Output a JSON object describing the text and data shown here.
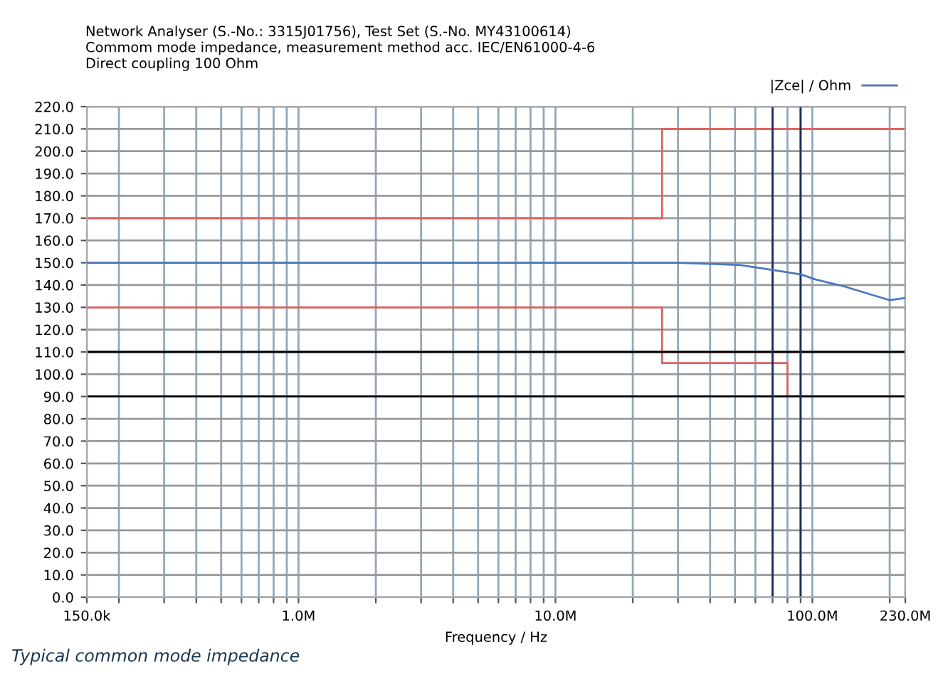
{
  "chart_data": {
    "type": "line",
    "title": "Network Analyser (S.-No.: 3315J01756), Test Set (S.-No. MY43100614)\nCommom mode impedance, measurement method acc. IEC/EN61000-4-6\nDirect coupling 100 Ohm",
    "xlabel": "Frequency / Hz",
    "annotations": [
      "Typical common mode impedance"
    ],
    "log": "x",
    "xlim": [
      150000,
      230000000
    ],
    "xticks": [
      {
        "value": 150000,
        "label": "150.0k"
      },
      {
        "value": 200000,
        "label": null
      },
      {
        "value": 300000,
        "label": null
      },
      {
        "value": 400000,
        "label": null
      },
      {
        "value": 500000,
        "label": null
      },
      {
        "value": 600000,
        "label": null
      },
      {
        "value": 700000,
        "label": null
      },
      {
        "value": 800000,
        "label": null
      },
      {
        "value": 900000,
        "label": null
      },
      {
        "value": 1000000,
        "label": "1.0M"
      },
      {
        "value": 2000000,
        "label": null
      },
      {
        "value": 3000000,
        "label": null
      },
      {
        "value": 4000000,
        "label": null
      },
      {
        "value": 5000000,
        "label": null
      },
      {
        "value": 6000000,
        "label": null
      },
      {
        "value": 7000000,
        "label": null
      },
      {
        "value": 8000000,
        "label": null
      },
      {
        "value": 9000000,
        "label": null
      },
      {
        "value": 10000000,
        "label": "10.0M"
      },
      {
        "value": 20000000,
        "label": null
      },
      {
        "value": 30000000,
        "label": null
      },
      {
        "value": 40000000,
        "label": null
      },
      {
        "value": 50000000,
        "label": null
      },
      {
        "value": 60000000,
        "label": null
      },
      {
        "value": 70000000,
        "label": null
      },
      {
        "value": 80000000,
        "label": null
      },
      {
        "value": 90000000,
        "label": null
      },
      {
        "value": 100000000,
        "label": "100.0M"
      },
      {
        "value": 200000000,
        "label": null
      },
      {
        "value": 230000000,
        "label": "230.0M"
      }
    ],
    "ylim": [
      0,
      220
    ],
    "yticks": [
      {
        "value": 0,
        "label": "0.0"
      },
      {
        "value": 10,
        "label": "10.0"
      },
      {
        "value": 20,
        "label": "20.0"
      },
      {
        "value": 30,
        "label": "30.0"
      },
      {
        "value": 40,
        "label": "40.0"
      },
      {
        "value": 50,
        "label": "50.0"
      },
      {
        "value": 60,
        "label": "60.0"
      },
      {
        "value": 70,
        "label": "70.0"
      },
      {
        "value": 80,
        "label": "80.0"
      },
      {
        "value": 90,
        "label": "90.0"
      },
      {
        "value": 100,
        "label": "100.0"
      },
      {
        "value": 110,
        "label": "110.0"
      },
      {
        "value": 120,
        "label": "120.0"
      },
      {
        "value": 130,
        "label": "130.0"
      },
      {
        "value": 140,
        "label": "140.0"
      },
      {
        "value": 150,
        "label": "150.0"
      },
      {
        "value": 160,
        "label": "160.0"
      },
      {
        "value": 170,
        "label": "170.0"
      },
      {
        "value": 180,
        "label": "180.0"
      },
      {
        "value": 190,
        "label": "190.0"
      },
      {
        "value": 200,
        "label": "200.0"
      },
      {
        "value": 210,
        "label": "210.0"
      },
      {
        "value": 220,
        "label": "220.0"
      }
    ],
    "grid": true,
    "legend": "top right",
    "series": [
      {
        "color": "#e06060",
        "x": [
          150000,
          26000000,
          26000000,
          230000000
        ],
        "values": [
          170,
          170,
          210,
          210
        ]
      },
      {
        "color": "#e06060",
        "x": [
          150000,
          26000000,
          26000000,
          80000000,
          80000000,
          230000000
        ],
        "values": [
          130,
          130,
          105,
          105,
          90,
          90
        ]
      },
      {
        "name": "|Zce| / Ohm",
        "color": "#4a78c0",
        "x": [
          150000,
          1000000,
          10000000,
          30000000,
          40000000,
          52000000,
          73500000,
          90500000,
          103000000,
          132000000,
          200000000,
          230000000
        ],
        "values": [
          150,
          150,
          150,
          150,
          149.5,
          149,
          146.4,
          144.7,
          142.5,
          139.5,
          133.2,
          134.2
        ]
      },
      {
        "color": "#000000",
        "x": [
          150000,
          230000000
        ],
        "values": [
          110,
          110
        ]
      },
      {
        "color": "#000000",
        "x": [
          150000,
          230000000
        ],
        "values": [
          90,
          90
        ]
      },
      {
        "color": "#1a2f5a",
        "x": [
          70000000,
          70000000
        ],
        "values": [
          0,
          220
        ]
      },
      {
        "color": "#1a2f5a",
        "x": [
          90000000,
          90000000
        ],
        "values": [
          0,
          220
        ]
      }
    ]
  }
}
